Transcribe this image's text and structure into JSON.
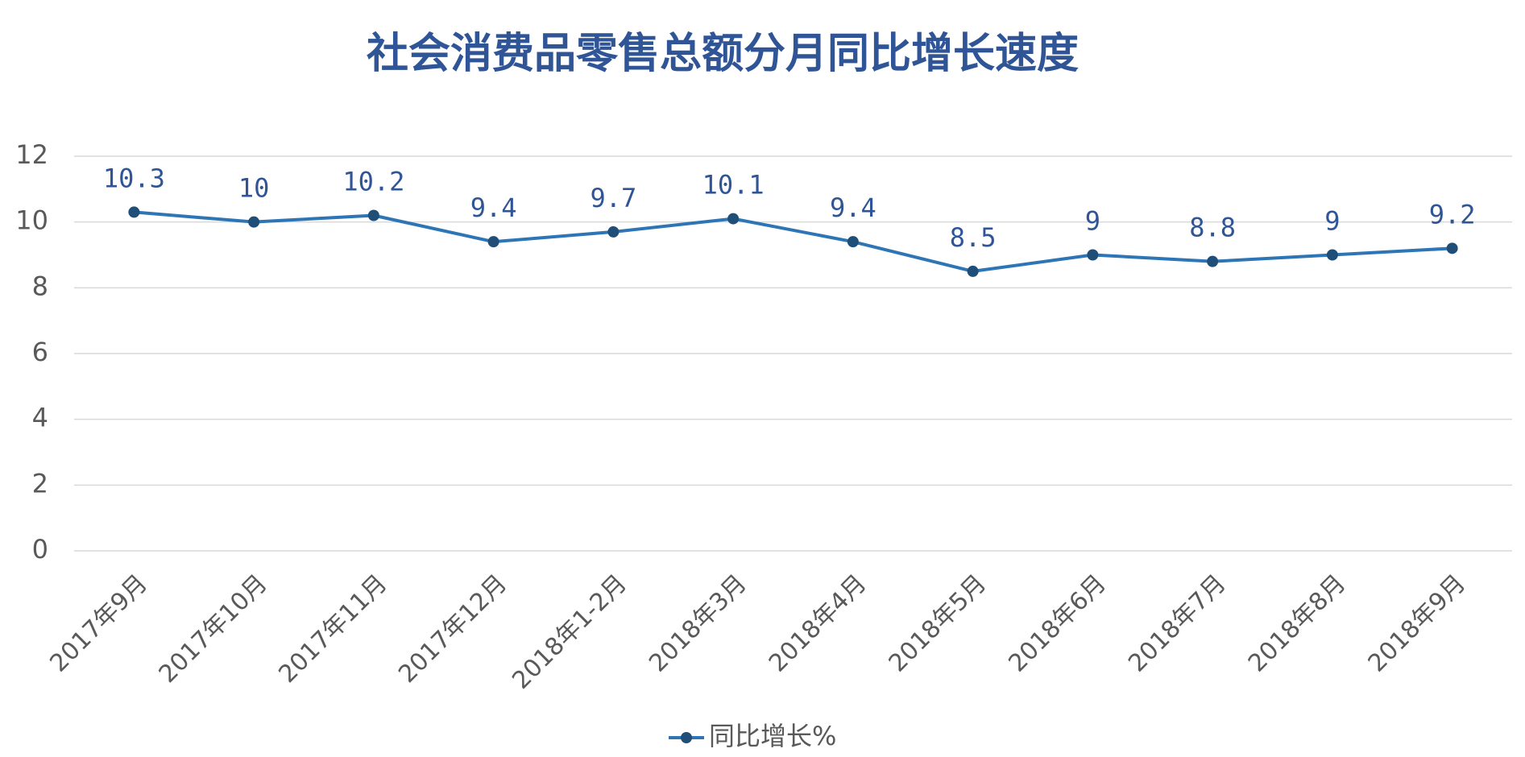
{
  "chart_data": {
    "type": "line",
    "title": "社会消费品零售总额分月同比增长速度",
    "categories": [
      "2017年9月",
      "2017年10月",
      "2017年11月",
      "2017年12月",
      "2018年1-2月",
      "2018年3月",
      "2018年4月",
      "2018年5月",
      "2018年6月",
      "2018年7月",
      "2018年8月",
      "2018年9月"
    ],
    "series": [
      {
        "name": "同比增长%",
        "color": "#2e75b6",
        "values": [
          10.3,
          10,
          10.2,
          9.4,
          9.7,
          10.1,
          9.4,
          8.5,
          9,
          8.8,
          9,
          9.2
        ]
      }
    ],
    "ylim": [
      0,
      12
    ],
    "yticks": [
      0,
      2,
      4,
      6,
      8,
      10,
      12
    ],
    "grid": true,
    "legend": "bottom"
  }
}
